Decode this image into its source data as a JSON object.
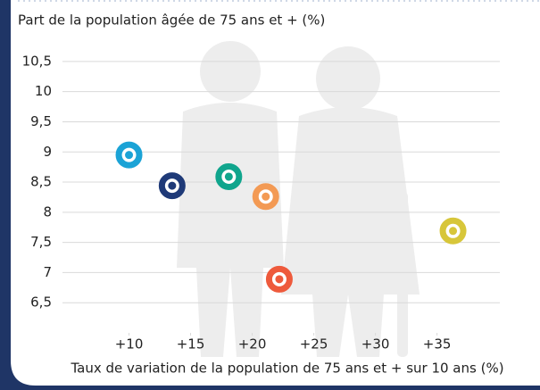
{
  "chart_data": {
    "type": "scatter",
    "title": "Part de la population âgée de 75 ans et + (%)",
    "x_label": "Taux de variation de la population de 75 ans et + sur 10 ans (%)",
    "x": [
      10,
      13.5,
      18.1,
      21.1,
      22.2,
      36.3
    ],
    "values": [
      8.95,
      8.44,
      8.59,
      8.26,
      6.89,
      7.69
    ],
    "colors": [
      "#1ba3d6",
      "#1f3a78",
      "#10a58d",
      "#f39a54",
      "#ee5a3c",
      "#d7c63a"
    ],
    "xlim": [
      4.6,
      40.1
    ],
    "ylim": [
      6,
      10.75
    ],
    "xticks": [
      {
        "value": 10,
        "label": "+10"
      },
      {
        "value": 15,
        "label": "+15"
      },
      {
        "value": 20,
        "label": "+20"
      },
      {
        "value": 25,
        "label": "+25"
      },
      {
        "value": 30,
        "label": "+30"
      },
      {
        "value": 35,
        "label": "+35"
      }
    ],
    "yticks": [
      {
        "value": 6.5,
        "label": "6,5"
      },
      {
        "value": 7,
        "label": "7"
      },
      {
        "value": 7.5,
        "label": "7,5"
      },
      {
        "value": 8,
        "label": "8"
      },
      {
        "value": 8.5,
        "label": "8,5"
      },
      {
        "value": 9,
        "label": "9"
      },
      {
        "value": 9.5,
        "label": "9,5"
      },
      {
        "value": 10,
        "label": "10"
      },
      {
        "value": 10.5,
        "label": "10,5"
      }
    ],
    "grid": true
  }
}
